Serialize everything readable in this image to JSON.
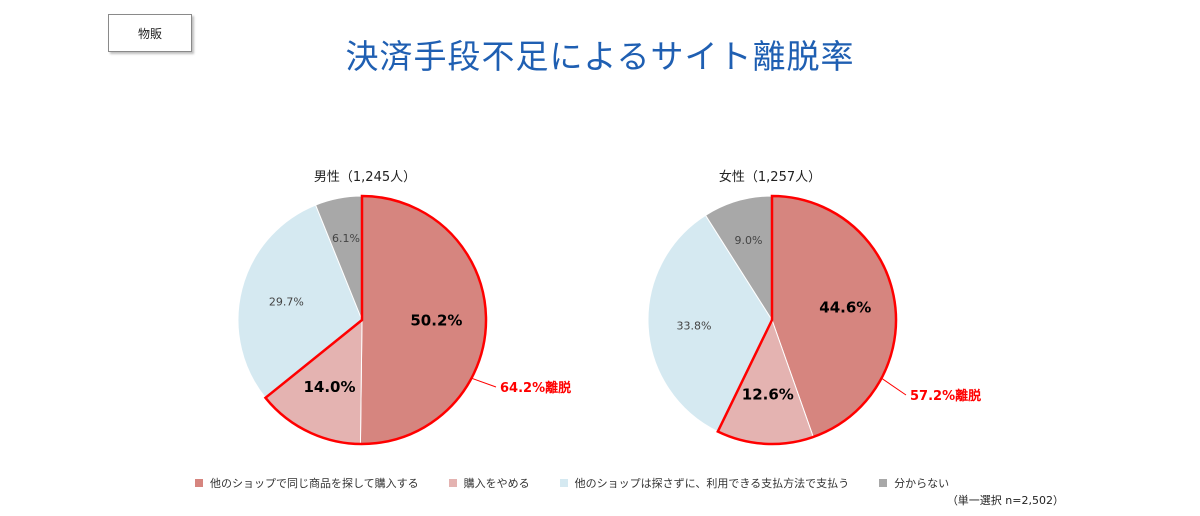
{
  "tag_label": "物販",
  "title": "決済手段不足によるサイト離脱率",
  "note": "（単一選択 n=2,502）",
  "legend": [
    {
      "label": "他のショップで同じ商品を探して購入する",
      "color": "#d6857f"
    },
    {
      "label": "購入をやめる",
      "color": "#e4b3b1"
    },
    {
      "label": "他のショップは探さずに、利用できる支払方法で支払う",
      "color": "#d5e9f1"
    },
    {
      "label": "分からない",
      "color": "#a8a8a8"
    }
  ],
  "chart_data": [
    {
      "type": "pie",
      "title": "男性（1,245人）",
      "categories": [
        "他のショップで同じ商品を探して購入する",
        "購入をやめる",
        "他のショップは探さずに、利用できる支払方法で支払う",
        "分からない"
      ],
      "values": [
        50.2,
        14.0,
        29.7,
        6.1
      ],
      "value_labels": [
        "50.2%",
        "14.0%",
        "29.7%",
        "6.1%"
      ],
      "highlight_indices": [
        0,
        1
      ],
      "highlight_label": "64.2%離脱",
      "highlight_color": "#ff0000"
    },
    {
      "type": "pie",
      "title": "女性（1,257人）",
      "categories": [
        "他のショップで同じ商品を探して購入する",
        "購入をやめる",
        "他のショップは探さずに、利用できる支払方法で支払う",
        "分からない"
      ],
      "values": [
        44.6,
        12.6,
        33.8,
        9.0
      ],
      "value_labels": [
        "44.6%",
        "12.6%",
        "33.8%",
        "9.0%"
      ],
      "highlight_indices": [
        0,
        1
      ],
      "highlight_label": "57.2%離脱",
      "highlight_color": "#ff0000"
    }
  ]
}
